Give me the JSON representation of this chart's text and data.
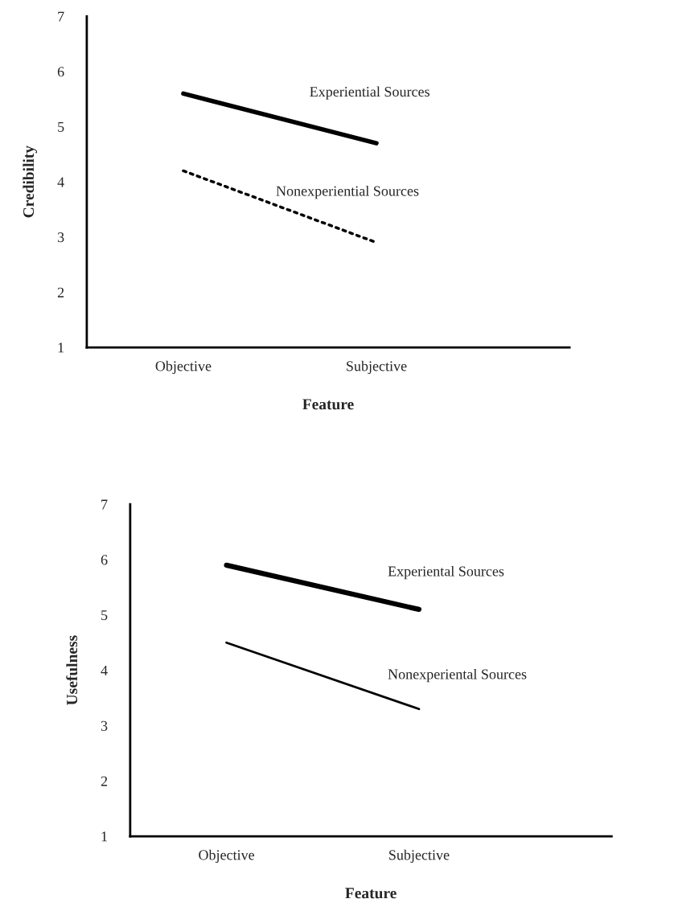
{
  "chart_data": [
    {
      "type": "line",
      "xlabel": "Feature",
      "ylabel": "Credibility",
      "categories": [
        "Objective",
        "Subjective"
      ],
      "ylim": [
        1,
        7
      ],
      "yticks": [
        1,
        2,
        3,
        4,
        5,
        6,
        7
      ],
      "grid": false,
      "legend": false,
      "marker": "none",
      "series": [
        {
          "name": "Experiential Sources",
          "color": "#000000",
          "line_style": "solid",
          "values": [
            5.6,
            4.7
          ]
        },
        {
          "name": "Nonexperiential Sources",
          "color": "#000000",
          "line_style": "dotted",
          "values": [
            4.2,
            2.9
          ]
        }
      ]
    },
    {
      "type": "line",
      "xlabel": "Feature",
      "ylabel": "Usefulness",
      "categories": [
        "Objective",
        "Subjective"
      ],
      "ylim": [
        1,
        7
      ],
      "yticks": [
        1,
        2,
        3,
        4,
        5,
        6,
        7
      ],
      "grid": false,
      "legend": false,
      "marker": "none",
      "series": [
        {
          "name": "Experiental Sources",
          "color": "#000000",
          "line_style": "solid",
          "values": [
            5.9,
            5.1
          ]
        },
        {
          "name": "Nonexperiental Sources",
          "color": "#000000",
          "line_style": "solid",
          "values": [
            4.5,
            3.3
          ]
        }
      ]
    }
  ]
}
